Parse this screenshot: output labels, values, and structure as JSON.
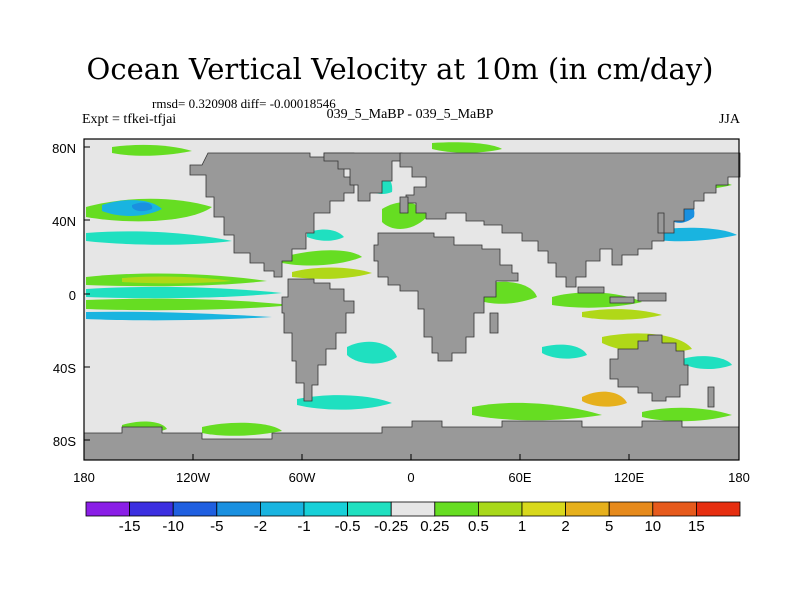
{
  "title": "Ocean Vertical Velocity at 10m (in cm/day)",
  "stats": "rmsd= 0.320908 diff= -0.00018546",
  "experiment": "Expt = tfkei-tfjai",
  "case": "039_5_MaBP - 039_5_MaBP",
  "season": "JJA",
  "lat_labels": [
    "80N",
    "40N",
    "0",
    "40S",
    "80S"
  ],
  "lon_labels": [
    "180",
    "120W",
    "60W",
    "0",
    "60E",
    "120E",
    "180"
  ],
  "colorbar": {
    "labels": [
      "-15",
      "-10",
      "-5",
      "-2",
      "-1",
      "-0.5",
      "-0.25",
      "0.25",
      "0.5",
      "1",
      "2",
      "5",
      "10",
      "15"
    ],
    "colors": [
      "#8a1ee6",
      "#3c2fe0",
      "#1f5fe0",
      "#1a90e0",
      "#19b4e0",
      "#17d0d8",
      "#1fe0c0",
      "#e6e6e6",
      "#66dd22",
      "#a8d81a",
      "#d8d81c",
      "#e6b01c",
      "#e68a1c",
      "#e65a1c",
      "#e62e10"
    ]
  },
  "map_colors": {
    "ocean": "#e6e6e6",
    "land": "#999999",
    "upwelling_weak": "#66dd22",
    "upwelling_mid": "#b0d818",
    "downwelling_weak": "#1fe0c0",
    "downwelling_mid": "#19b4e0",
    "downwelling_strong": "#1a90e0",
    "upwelling_strong": "#e68a1c"
  }
}
